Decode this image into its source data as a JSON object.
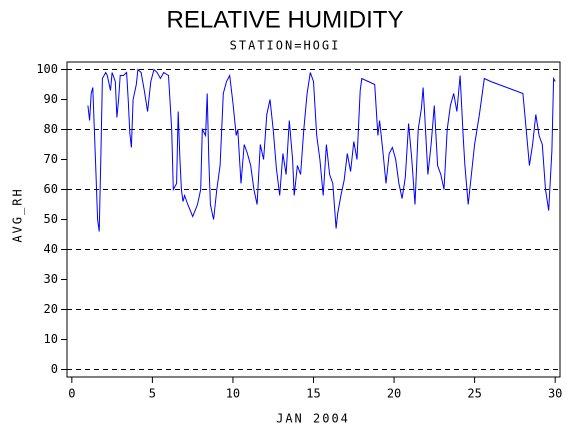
{
  "chart_data": {
    "type": "line",
    "title": "RELATIVE HUMIDITY",
    "subtitle": "STATION=HOGI",
    "y_label": "AVG_RH",
    "x_label": "JAN 2004",
    "xlim": [
      -0.3,
      30.3
    ],
    "xticks": [
      0,
      5,
      10,
      15,
      20,
      25,
      30
    ],
    "ylim": [
      -2.5,
      102.5
    ],
    "yticks": [
      0,
      10,
      20,
      30,
      40,
      50,
      60,
      70,
      80,
      90,
      100
    ],
    "grid_lines": [
      0,
      20,
      40,
      60,
      80,
      100
    ],
    "series": [
      {
        "color": "#0000ff",
        "x": [
          1.0,
          1.1,
          1.2,
          1.3,
          1.5,
          1.6,
          1.7,
          1.8,
          1.9,
          2.1,
          2.2,
          2.4,
          2.5,
          2.7,
          2.8,
          2.9,
          3.0,
          3.2,
          3.4,
          3.5,
          3.6,
          3.7,
          3.8,
          4.0,
          4.1,
          4.3,
          4.5,
          4.7,
          4.9,
          5.1,
          5.3,
          5.5,
          5.7,
          6.0,
          6.2,
          6.3,
          6.5,
          6.6,
          6.7,
          6.8,
          6.9,
          7.0,
          7.2,
          7.5,
          7.8,
          8.0,
          8.1,
          8.3,
          8.4,
          8.5,
          8.6,
          8.8,
          9.0,
          9.2,
          9.4,
          9.6,
          9.8,
          10.0,
          10.2,
          10.3,
          10.5,
          10.7,
          10.9,
          11.1,
          11.3,
          11.5,
          11.7,
          11.9,
          12.1,
          12.3,
          12.5,
          12.7,
          12.9,
          13.1,
          13.3,
          13.5,
          13.7,
          13.8,
          14.0,
          14.2,
          14.4,
          14.6,
          14.8,
          15.0,
          15.2,
          15.4,
          15.6,
          15.8,
          16.0,
          16.2,
          16.4,
          16.5,
          16.7,
          16.9,
          17.1,
          17.3,
          17.5,
          17.7,
          17.9,
          18.0,
          18.8,
          19.0,
          19.1,
          19.3,
          19.5,
          19.7,
          19.9,
          20.1,
          20.3,
          20.5,
          20.7,
          20.9,
          21.1,
          21.3,
          21.5,
          21.7,
          21.8,
          21.9,
          22.1,
          22.3,
          22.5,
          22.7,
          22.9,
          23.1,
          23.3,
          23.5,
          23.7,
          23.9,
          24.1,
          24.3,
          24.4,
          24.6,
          24.8,
          25.0,
          25.3,
          25.6,
          26.0,
          27.0,
          28.0,
          28.2,
          28.4,
          28.6,
          28.8,
          29.0,
          29.2,
          29.4,
          29.6,
          29.8,
          29.9,
          30.0
        ],
        "values": [
          88,
          83,
          92,
          94,
          65,
          50,
          46,
          70,
          97,
          99,
          98,
          93,
          99,
          96,
          84,
          90,
          98,
          98,
          99,
          90,
          79,
          74,
          90,
          95,
          100,
          99,
          93,
          86,
          96,
          100,
          99,
          97,
          99,
          98,
          80,
          60,
          62,
          86,
          71,
          60,
          56,
          58,
          55,
          51,
          55,
          60,
          80,
          78,
          92,
          70,
          55,
          50,
          60,
          68,
          92,
          96,
          98,
          89,
          78,
          80,
          62,
          75,
          72,
          68,
          60,
          55,
          75,
          70,
          85,
          90,
          80,
          67,
          58,
          72,
          65,
          83,
          70,
          58,
          68,
          65,
          80,
          92,
          99,
          96,
          78,
          70,
          58,
          75,
          65,
          62,
          47,
          52,
          58,
          63,
          72,
          66,
          76,
          70,
          93,
          97,
          95,
          78,
          83,
          73,
          62,
          72,
          74,
          70,
          62,
          57,
          64,
          82,
          70,
          55,
          80,
          87,
          94,
          85,
          65,
          75,
          88,
          68,
          65,
          60,
          80,
          88,
          92,
          86,
          98,
          77,
          68,
          55,
          65,
          75,
          85,
          97,
          96,
          94,
          92,
          80,
          68,
          75,
          85,
          78,
          75,
          60,
          53,
          73,
          97,
          96
        ]
      }
    ]
  }
}
